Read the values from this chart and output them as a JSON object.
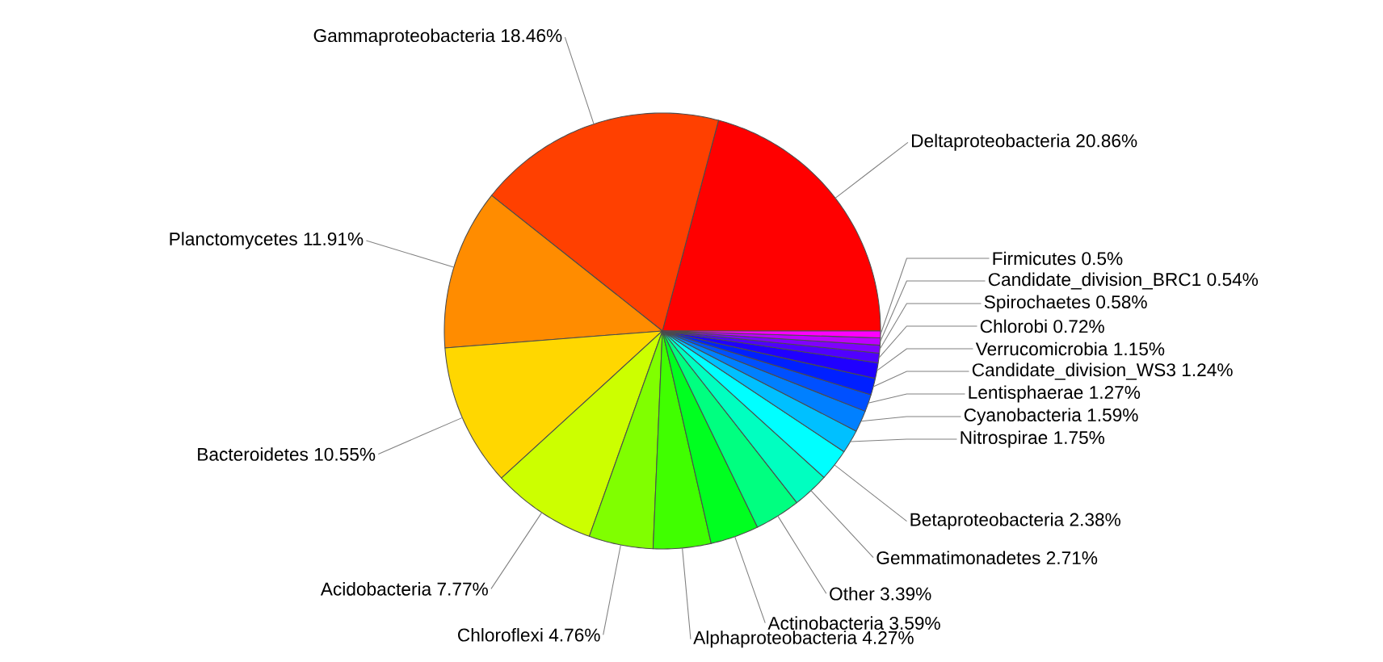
{
  "chart_data": {
    "type": "pie",
    "categories": [
      "Deltaproteobacteria",
      "Gammaproteobacteria",
      "Planctomycetes",
      "Bacteroidetes",
      "Acidobacteria",
      "Chloroflexi",
      "Alphaproteobacteria",
      "Actinobacteria",
      "Other",
      "Gemmatimonadetes",
      "Betaproteobacteria",
      "Nitrospirae",
      "Cyanobacteria",
      "Lentisphaerae",
      "Candidate_division_WS3",
      "Verrucomicrobia",
      "Chlorobi",
      "Spirochaetes",
      "Candidate_division_BRC1",
      "Firmicutes"
    ],
    "values": [
      20.86,
      18.46,
      11.91,
      10.55,
      7.77,
      4.76,
      4.27,
      3.59,
      3.39,
      2.71,
      2.38,
      1.75,
      1.59,
      1.27,
      1.24,
      1.15,
      0.72,
      0.58,
      0.54,
      0.5
    ],
    "value_labels": [
      "20.86%",
      "18.46%",
      "11.91%",
      "10.55%",
      "7.77%",
      "4.76%",
      "4.27%",
      "3.59%",
      "3.39%",
      "2.71%",
      "2.38%",
      "1.75%",
      "1.59%",
      "1.27%",
      "1.24%",
      "1.15%",
      "0.72%",
      "0.58%",
      "0.54%",
      "0.5%"
    ],
    "colors": [
      "#ff0000",
      "#ff4000",
      "#ff8c00",
      "#ffd700",
      "#ccff00",
      "#80ff00",
      "#40ff00",
      "#00ff20",
      "#00ff80",
      "#00ffc0",
      "#00ffff",
      "#00c0ff",
      "#0080ff",
      "#0050ff",
      "#0020ff",
      "#2000ff",
      "#5000ff",
      "#8000ff",
      "#c000ff",
      "#ff00ff"
    ]
  }
}
